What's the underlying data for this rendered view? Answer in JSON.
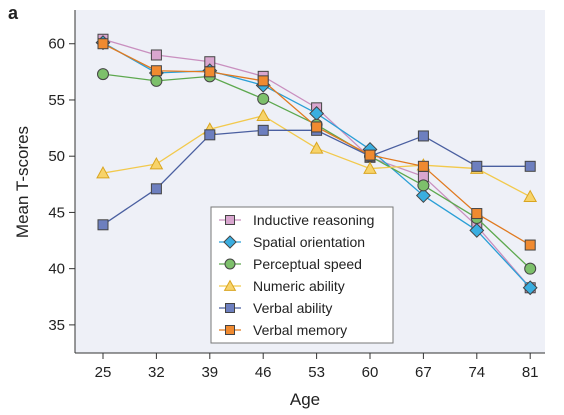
{
  "panel_label": "a",
  "chart_data": {
    "type": "line",
    "title": "",
    "xlabel": "Age",
    "ylabel": "Mean T-scores",
    "x": [
      25,
      32,
      39,
      46,
      53,
      60,
      67,
      74,
      81
    ],
    "xticks": [
      "25",
      "32",
      "39",
      "46",
      "53",
      "60",
      "67",
      "74",
      "81"
    ],
    "yticks": [
      "35",
      "40",
      "45",
      "50",
      "55",
      "60"
    ],
    "ylim": [
      32.5,
      63
    ],
    "grid": false,
    "legend_position": "center-bottom",
    "series": [
      {
        "name": "Inductive reasoning",
        "marker": "square",
        "color": "#c98fbf",
        "fill": "#d9a6cf",
        "values": [
          60.4,
          59.0,
          58.4,
          57.1,
          54.3,
          49.9,
          48.2,
          43.8,
          38.3
        ]
      },
      {
        "name": "Spatial orientation",
        "marker": "diamond",
        "color": "#2a9fd6",
        "fill": "#3aaee0",
        "values": [
          60.1,
          57.4,
          57.6,
          56.3,
          53.8,
          50.6,
          46.5,
          43.4,
          38.3
        ]
      },
      {
        "name": "Perceptual speed",
        "marker": "circle",
        "color": "#5da84e",
        "fill": "#7dc06b",
        "values": [
          57.3,
          56.7,
          57.1,
          55.1,
          52.8,
          50.0,
          47.4,
          44.5,
          40.0
        ]
      },
      {
        "name": "Numeric ability",
        "marker": "triangle",
        "color": "#f2c94c",
        "fill": "#f7d36a",
        "values": [
          48.5,
          49.3,
          52.4,
          53.6,
          50.7,
          48.9,
          49.2,
          48.9,
          46.4
        ]
      },
      {
        "name": "Verbal ability",
        "marker": "square",
        "color": "#4a5fa0",
        "fill": "#6d7fbf",
        "values": [
          43.9,
          47.1,
          51.9,
          52.3,
          52.3,
          50.0,
          51.8,
          49.1,
          49.1
        ]
      },
      {
        "name": "Verbal memory",
        "marker": "square",
        "color": "#e07a20",
        "fill": "#f08a30",
        "values": [
          60.0,
          57.6,
          57.5,
          56.7,
          52.6,
          50.1,
          49.1,
          44.9,
          42.1
        ]
      }
    ]
  }
}
